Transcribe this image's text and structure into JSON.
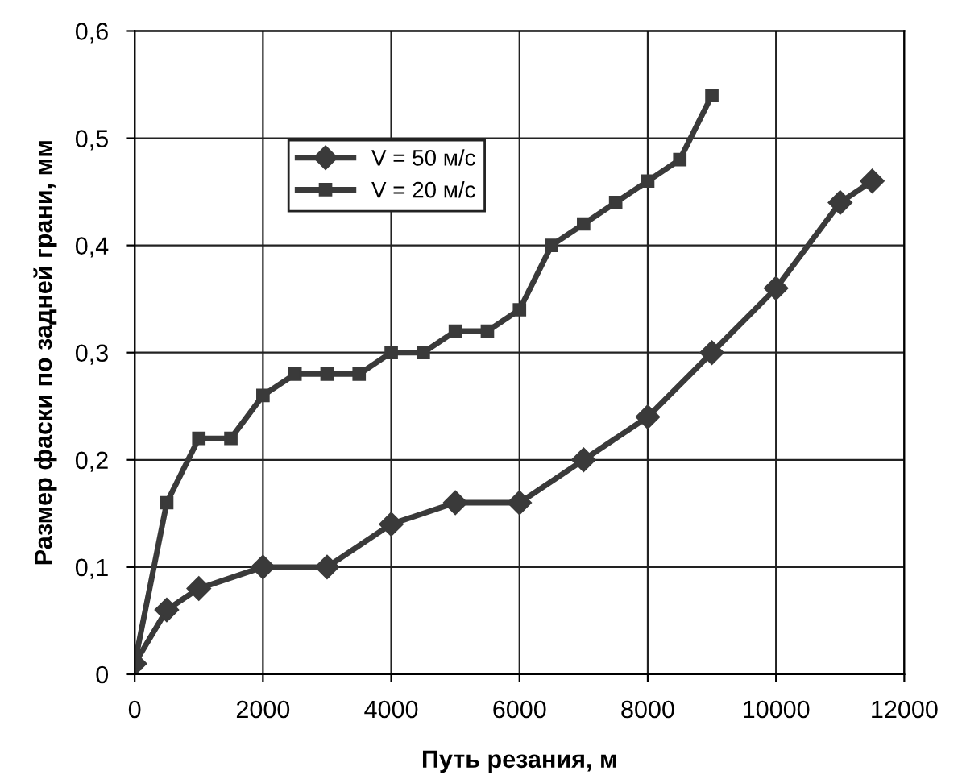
{
  "chart_data": {
    "type": "line",
    "xlabel": "Путь резания, м",
    "ylabel": "Размер фаски по задней грани, мм",
    "xlim": [
      0,
      12000
    ],
    "xticks": [
      0,
      2000,
      4000,
      6000,
      8000,
      10000,
      12000
    ],
    "ylim": [
      0,
      0.6
    ],
    "yticks": [
      {
        "value": 0,
        "label": "0"
      },
      {
        "value": 0.1,
        "label": "0,1"
      },
      {
        "value": 0.2,
        "label": "0,2"
      },
      {
        "value": 0.3,
        "label": "0,3"
      },
      {
        "value": 0.4,
        "label": "0,4"
      },
      {
        "value": 0.5,
        "label": "0,5"
      },
      {
        "value": 0.6,
        "label": "0,6"
      }
    ],
    "grid": true,
    "legend": "top left",
    "line_style": "solid",
    "series": [
      {
        "name": "V = 50 м/с",
        "color": "#3a3a3a",
        "marker": "diamond",
        "x": [
          0,
          500,
          1000,
          2000,
          3000,
          4000,
          5000,
          6000,
          7000,
          8000,
          9000,
          10000,
          11000,
          11500
        ],
        "values": [
          0.01,
          0.06,
          0.08,
          0.1,
          0.1,
          0.14,
          0.16,
          0.16,
          0.2,
          0.24,
          0.3,
          0.36,
          0.44,
          0.46
        ]
      },
      {
        "name": "V = 20 м/с",
        "color": "#3a3a3a",
        "marker": "square",
        "x": [
          0,
          500,
          1000,
          1500,
          2000,
          2500,
          3000,
          3500,
          4000,
          4500,
          5000,
          5500,
          6000,
          6500,
          7000,
          7500,
          8000,
          8500,
          9000
        ],
        "values": [
          0.01,
          0.16,
          0.22,
          0.22,
          0.26,
          0.28,
          0.28,
          0.28,
          0.3,
          0.3,
          0.32,
          0.32,
          0.34,
          0.4,
          0.42,
          0.44,
          0.46,
          0.48,
          0.54
        ]
      }
    ]
  }
}
